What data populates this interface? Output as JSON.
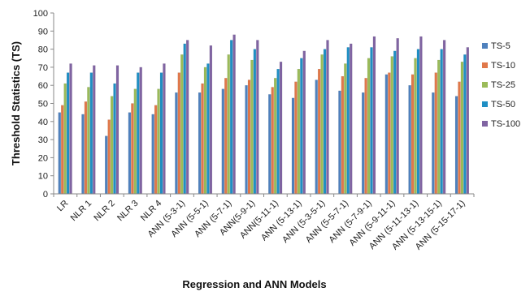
{
  "chart_data": {
    "type": "bar",
    "title": "",
    "xlabel": "Regression and ANN Models",
    "ylabel": "Threshold Statistics (TS)",
    "ylim": [
      0,
      100
    ],
    "yticks": [
      0,
      10,
      20,
      30,
      40,
      50,
      60,
      70,
      80,
      90,
      100
    ],
    "grid": false,
    "legend_position": "right",
    "categories": [
      "LR",
      "NLR 1",
      "NLR 2",
      "NLR 3",
      "NLR 4",
      "ANN (5-3-1)",
      "ANN (5-5-1)",
      "ANN (5-7-1)",
      "ANN(5-9-1)",
      "ANN(5-11-1)",
      "ANN (5-13-1)",
      "ANN (5-3-5-1)",
      "ANN (5-5-7-1)",
      "ANN (5-7-9-1)",
      "ANN (5-9-11-1)",
      "ANN (5-11-13-1)",
      "ANN (5-13-15-1)",
      "ANN (5-15-17-1)"
    ],
    "series": [
      {
        "name": "TS-5",
        "color": "#4F81BD",
        "values": [
          45,
          44,
          32,
          45,
          44,
          56,
          56,
          58,
          60,
          55,
          53,
          63,
          57,
          56,
          66,
          60,
          56,
          54
        ]
      },
      {
        "name": "TS-10",
        "color": "#E0784A",
        "values": [
          49,
          51,
          41,
          50,
          49,
          67,
          61,
          64,
          63,
          59,
          62,
          69,
          65,
          64,
          67,
          66,
          67,
          62
        ]
      },
      {
        "name": "TS-25",
        "color": "#9BBB59",
        "values": [
          61,
          59,
          54,
          58,
          58,
          77,
          70,
          77,
          74,
          64,
          69,
          77,
          72,
          75,
          76,
          75,
          74,
          73
        ]
      },
      {
        "name": "TS-50",
        "color": "#1F8FC4",
        "values": [
          67,
          67,
          61,
          67,
          67,
          83,
          72,
          85,
          80,
          69,
          75,
          80,
          81,
          81,
          79,
          80,
          80,
          77
        ]
      },
      {
        "name": "TS-100",
        "color": "#8064A2",
        "values": [
          72,
          71,
          71,
          70,
          72,
          85,
          82,
          88,
          85,
          73,
          79,
          85,
          83,
          87,
          86,
          87,
          85,
          81
        ]
      }
    ]
  }
}
